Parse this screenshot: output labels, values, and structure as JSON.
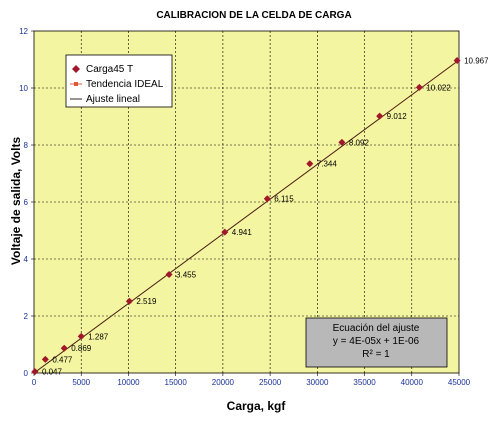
{
  "chart_data": {
    "type": "scatter",
    "title": "CALIBRACION DE LA CELDA DE CARGA",
    "xlabel": "Carga, kgf",
    "ylabel": "Voltaje de salida, Volts",
    "xlim": [
      0,
      45000
    ],
    "ylim": [
      0,
      12
    ],
    "x_ticks": [
      "0",
      "5000",
      "10000",
      "15000",
      "20000",
      "25000",
      "30000",
      "35000",
      "40000",
      "45000"
    ],
    "y_ticks": [
      "0",
      "2",
      "4",
      "6",
      "8",
      "10",
      "12"
    ],
    "grid": "dashed",
    "legend_position": "top-left",
    "legend": [
      "Carga45 T",
      "Tendencia IDEAL",
      "Ajuste lineal"
    ],
    "series": [
      {
        "name": "Carga45 T",
        "color": "#a0182a",
        "marker": "diamond",
        "x": [
          100,
          1200,
          3200,
          5000,
          10100,
          14300,
          20200,
          24700,
          29200,
          32600,
          36600,
          40800,
          44800
        ],
        "y": [
          0.047,
          0.477,
          0.869,
          1.287,
          2.519,
          3.455,
          4.941,
          6.115,
          7.344,
          8.092,
          9.012,
          10.022,
          10.967
        ],
        "labels": [
          "0.047",
          "0.477",
          "0.869",
          "1.287",
          "2.519",
          "3.455",
          "4.941",
          "6.115",
          "7.344",
          "8.092",
          "9.012",
          "10.022",
          "10.967"
        ]
      },
      {
        "name": "Tendencia IDEAL",
        "color": "#e05a3a",
        "marker": "square",
        "x": [
          0,
          45000
        ],
        "y": [
          0,
          10.98
        ]
      },
      {
        "name": "Ajuste lineal",
        "color": "#3a2a1a",
        "x": [
          0,
          45000
        ],
        "y": [
          0,
          10.98
        ]
      }
    ],
    "equation_box": {
      "line1": "Ecuación del ajuste",
      "line2": "y = 4E-05x + 1E-06",
      "line3": "R² = 1"
    },
    "colors": {
      "plot_background": "#f4f5a0",
      "equation_box_background": "#b8b8b8",
      "tick_label": "#1a3399"
    }
  }
}
